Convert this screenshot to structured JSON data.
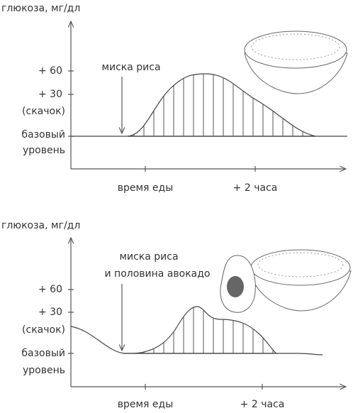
{
  "panels": [
    {
      "y_label": "глюкоза, мг/дл",
      "y_labels": [
        "+ 60",
        "+ 30",
        "(скачок)",
        "базовый",
        "уровень"
      ],
      "annotation": [
        "миска риса"
      ],
      "x_labels": [
        "время еды",
        "+ 2 часа"
      ]
    },
    {
      "y_label": "глюкоза, мг/дл",
      "y_labels": [
        "+ 60",
        "+ 30",
        "(скачок)",
        "базовый",
        "уровень"
      ],
      "annotation": [
        "миска риса",
        "и половина авокадо"
      ],
      "x_labels": [
        "время еды",
        "+ 2 часа"
      ]
    }
  ]
}
